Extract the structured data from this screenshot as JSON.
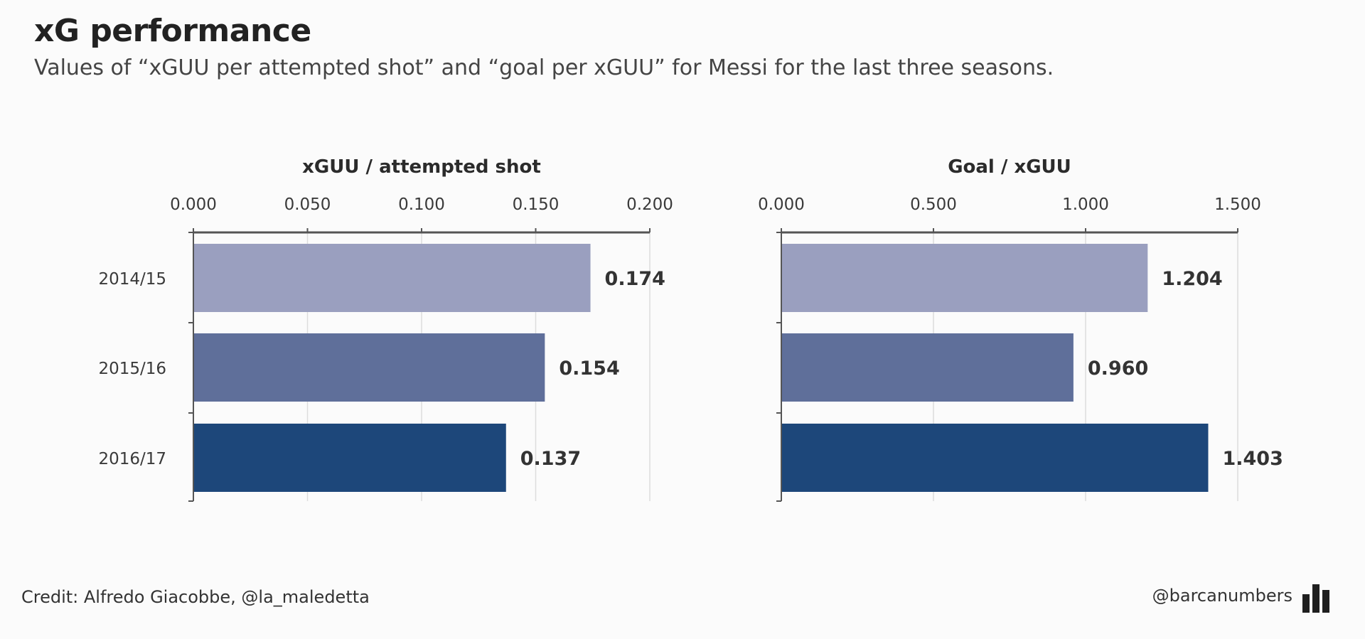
{
  "title": "xG performance",
  "subtitle": "Values of “xGUU per attempted shot” and “goal per xGUU” for Messi for the last three seasons.",
  "credit": "Credit: Alfredo Giacobbe, @la_maledetta",
  "brand": {
    "handle": "@barcanumbers",
    "icon": "bar-chart-icon"
  },
  "colors": {
    "bar_2014_15": "#9a9fbf",
    "bar_2015_16": "#5f6f9a",
    "bar_2016_17": "#1d477a",
    "axis": "#555555",
    "grid": "#dddddd"
  },
  "chart_data": [
    {
      "type": "bar",
      "orientation": "horizontal",
      "title": "xGUU / attempted shot",
      "categories": [
        "2014/15",
        "2015/16",
        "2016/17"
      ],
      "values": [
        0.174,
        0.154,
        0.137
      ],
      "value_labels": [
        "0.174",
        "0.154",
        "0.137"
      ],
      "xlim": [
        0,
        0.2
      ],
      "ticks": [
        0,
        0.05,
        0.1,
        0.15,
        0.2
      ],
      "tick_labels": [
        "0.000",
        "0.050",
        "0.100",
        "0.150",
        "0.200"
      ],
      "grid": true
    },
    {
      "type": "bar",
      "orientation": "horizontal",
      "title": "Goal / xGUU",
      "categories": [
        "2014/15",
        "2015/16",
        "2016/17"
      ],
      "values": [
        1.204,
        0.96,
        1.403
      ],
      "value_labels": [
        "1.204",
        "0.960",
        "1.403"
      ],
      "xlim": [
        0,
        1.5
      ],
      "ticks": [
        0,
        0.5,
        1.0,
        1.5
      ],
      "tick_labels": [
        "0.000",
        "0.500",
        "1.000",
        "1.500"
      ],
      "grid": true
    }
  ]
}
